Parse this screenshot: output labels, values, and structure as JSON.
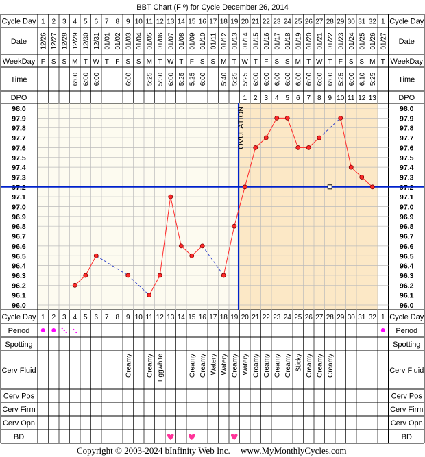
{
  "title": "BBT Chart (F º) for Cycle December 26, 2014",
  "footer": {
    "copyright": "Copyright © 2003-2024 bInfinity Web Inc.",
    "site": "www.MyMonthlyCycles.com"
  },
  "row_labels": {
    "cycle_day": "Cycle Day",
    "date": "Date",
    "weekday": "WeekDay",
    "time": "Time",
    "dpo": "DPO",
    "period": "Period",
    "spotting": "Spotting",
    "cerv_fluid": "Cerv Fluid",
    "cerv_pos": "Cerv Pos",
    "cerv_firm": "Cerv Firm",
    "cerv_opn": "Cerv Opn",
    "bd": "BD"
  },
  "ovulation_label": "OVULATION",
  "colors": {
    "post_ovulation_bg": "#fce8c6",
    "pre_ovulation_bg": "#fdfbf0",
    "grid": "#bbbbbb",
    "data_line": "#ff2a2a",
    "coverline": "#0022cc",
    "ovulation_line": "#0022cc",
    "period_dot": "#ff00ff",
    "heart": "#ff3399"
  },
  "chart_data": {
    "type": "line",
    "title": "BBT Chart (F º) for Cycle December 26, 2014",
    "cycle_days": [
      "1",
      "2",
      "3",
      "4",
      "5",
      "6",
      "7",
      "8",
      "9",
      "10",
      "11",
      "12",
      "13",
      "14",
      "15",
      "16",
      "17",
      "18",
      "19",
      "20",
      "21",
      "22",
      "23",
      "24",
      "25",
      "26",
      "27",
      "28",
      "29",
      "30",
      "31",
      "32",
      "1"
    ],
    "dates": [
      "12/26",
      "12/27",
      "12/28",
      "12/29",
      "12/30",
      "12/31",
      "01/01",
      "01/02",
      "01/03",
      "01/04",
      "01/05",
      "01/06",
      "01/07",
      "01/08",
      "01/09",
      "01/10",
      "01/11",
      "01/12",
      "01/13",
      "01/14",
      "01/15",
      "01/16",
      "01/17",
      "01/18",
      "01/19",
      "01/20",
      "01/21",
      "01/22",
      "01/23",
      "01/24",
      "01/25",
      "01/26",
      "01/27"
    ],
    "weekdays": [
      "F",
      "S",
      "S",
      "M",
      "T",
      "W",
      "T",
      "F",
      "S",
      "S",
      "M",
      "T",
      "W",
      "T",
      "F",
      "S",
      "S",
      "M",
      "T",
      "W",
      "T",
      "F",
      "S",
      "S",
      "M",
      "T",
      "W",
      "T",
      "F",
      "S",
      "S",
      "M",
      "T"
    ],
    "times": [
      "",
      "",
      "",
      "6:00",
      "6:00",
      "6:00",
      "",
      "",
      "6:00",
      "",
      "5:25",
      "5:30",
      "6:00",
      "5:25",
      "5:25",
      "6:00",
      "",
      "5:40",
      "5:25",
      "5:25",
      "6:00",
      "6:00",
      "6:00",
      "6:00",
      "6:00",
      "6:00",
      "6:00",
      "6:00",
      "5:25",
      "6:00",
      "6:10",
      "5:25",
      ""
    ],
    "dpo": [
      "",
      "",
      "",
      "",
      "",
      "",
      "",
      "",
      "",
      "",
      "",
      "",
      "",
      "",
      "",
      "",
      "",
      "",
      "",
      "1",
      "2",
      "3",
      "4",
      "5",
      "6",
      "7",
      "8",
      "9",
      "10",
      "11",
      "12",
      "13",
      ""
    ],
    "temperatures": [
      null,
      null,
      null,
      96.2,
      96.3,
      96.5,
      null,
      null,
      96.3,
      null,
      96.1,
      96.3,
      97.1,
      96.6,
      96.5,
      96.6,
      null,
      96.3,
      96.8,
      97.2,
      97.6,
      97.7,
      97.9,
      97.9,
      97.6,
      97.6,
      97.7,
      null,
      97.9,
      97.4,
      97.3,
      97.2,
      null
    ],
    "y_ticks": [
      "98.0",
      "97.9",
      "97.8",
      "97.7",
      "97.6",
      "97.5",
      "97.4",
      "97.3",
      "97.2",
      "97.1",
      "97.0",
      "96.9",
      "96.8",
      "96.7",
      "96.6",
      "96.5",
      "96.4",
      "96.3",
      "96.2",
      "96.1",
      "96.0"
    ],
    "ylim": [
      96.0,
      98.0
    ],
    "coverline": 97.2,
    "ovulation_day_index": 18,
    "period": [
      "heavy",
      "heavy",
      "light",
      "spotting-light",
      "",
      "",
      "",
      "",
      "",
      "",
      "",
      "",
      "",
      "",
      "",
      "",
      "",
      "",
      "",
      "",
      "",
      "",
      "",
      "",
      "",
      "",
      "",
      "",
      "",
      "",
      "",
      "",
      "heavy"
    ],
    "cervical_fluid": [
      "",
      "",
      "",
      "",
      "",
      "",
      "",
      "",
      "Creamy",
      "",
      "Creamy",
      "Eggwhite",
      "",
      "",
      "Creamy",
      "Creamy",
      "Watery",
      "Watery",
      "Creamy",
      "Watery",
      "Creamy",
      "Creamy",
      "Creamy",
      "Creamy",
      "Sticky",
      "Creamy",
      "Creamy",
      "Creamy",
      "",
      "",
      "",
      "",
      ""
    ],
    "bd": [
      false,
      false,
      false,
      false,
      false,
      false,
      false,
      false,
      false,
      false,
      false,
      false,
      true,
      false,
      true,
      false,
      false,
      false,
      true,
      false,
      false,
      false,
      false,
      false,
      false,
      false,
      false,
      false,
      false,
      false,
      false,
      false,
      false
    ]
  }
}
